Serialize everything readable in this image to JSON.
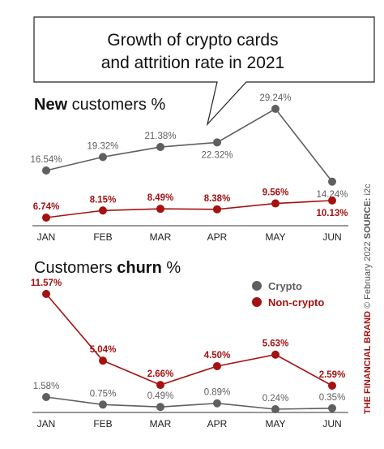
{
  "callout": {
    "line1": "Growth of crypto cards",
    "line2": "and attrition rate in 2021"
  },
  "colors": {
    "crypto": "#5f5f5f",
    "non_crypto": "#a51212",
    "brand": "#a51212",
    "axis": "#333333"
  },
  "chart_data": [
    {
      "type": "line",
      "title_bold": "New",
      "title_rest": " customers %",
      "categories": [
        "JAN",
        "FEB",
        "MAR",
        "APR",
        "MAY",
        "JUN"
      ],
      "series": [
        {
          "name": "Crypto",
          "values": [
            16.54,
            19.32,
            21.38,
            22.32,
            29.24,
            14.24
          ],
          "labels": [
            "16.54%",
            "19.32%",
            "21.38%",
            "22.32%",
            "29.24%",
            "14.24%"
          ]
        },
        {
          "name": "Non-crypto",
          "values": [
            6.74,
            8.15,
            8.49,
            8.38,
            9.56,
            10.13
          ],
          "labels": [
            "6.74%",
            "8.15%",
            "8.49%",
            "8.38%",
            "9.56%",
            "10.13%"
          ]
        }
      ],
      "legend": "none"
    },
    {
      "type": "line",
      "title_rest_before": "Customers ",
      "title_bold": "churn",
      "title_rest": " %",
      "categories": [
        "JAN",
        "FEB",
        "MAR",
        "APR",
        "MAY",
        "JUN"
      ],
      "series": [
        {
          "name": "Crypto",
          "values": [
            1.58,
            0.75,
            0.49,
            0.89,
            0.24,
            0.35
          ],
          "labels": [
            "1.58%",
            "0.75%",
            "0.49%",
            "0.89%",
            "0.24%",
            "0.35%"
          ]
        },
        {
          "name": "Non-crypto",
          "values": [
            11.57,
            5.04,
            2.66,
            4.5,
            5.63,
            2.59
          ],
          "labels": [
            "11.57%",
            "5.04%",
            "2.66%",
            "4.50%",
            "5.63%",
            "2.59%"
          ]
        }
      ],
      "legend": "top-right",
      "legend_entries": [
        "Crypto",
        "Non-crypto"
      ]
    }
  ],
  "credit": {
    "brand": "THE FINANCIAL BRAND",
    "rest": " © February 2022 ",
    "source_label": "SOURCE:",
    "source": " i2c"
  }
}
